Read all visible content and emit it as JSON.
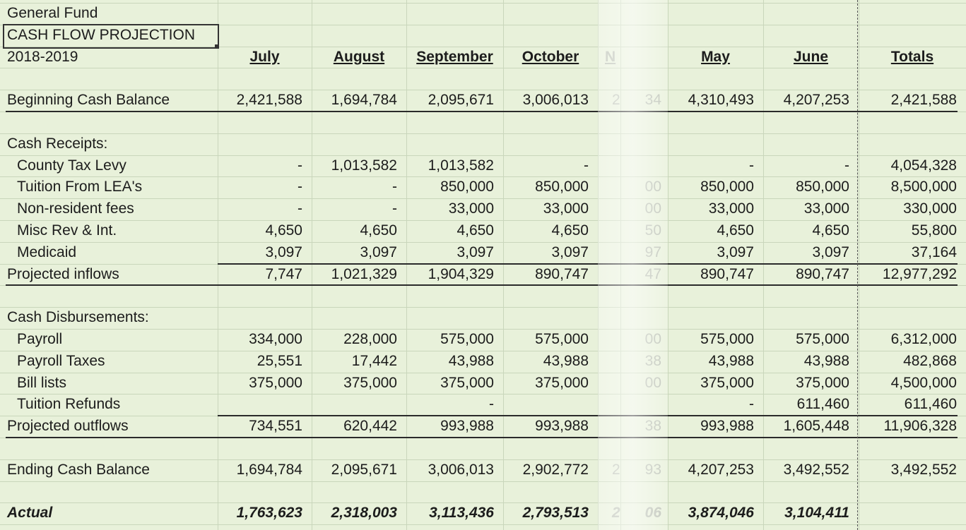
{
  "header": {
    "lines": [
      "General Fund",
      "CASH FLOW PROJECTION",
      "2018-2019"
    ]
  },
  "columns": [
    "July",
    "August",
    "September",
    "October",
    "May",
    "June",
    "Totals"
  ],
  "cropped_column": "N",
  "beginning": {
    "label": "Beginning Cash Balance",
    "values": [
      "2,421,588",
      "1,694,784",
      "2,095,671",
      "3,006,013",
      "4,310,493",
      "4,207,253",
      "2,421,588"
    ],
    "fragment": {
      "left": "2",
      "right": "34"
    }
  },
  "receipts": {
    "heading": "Cash Receipts:",
    "items": [
      {
        "label": "County Tax Levy",
        "values": [
          "-",
          "1,013,582",
          "1,013,582",
          "-",
          "-",
          "-",
          "4,054,328"
        ]
      },
      {
        "label": "Tuition From LEA's",
        "values": [
          "-",
          "-",
          "850,000",
          "850,000",
          "850,000",
          "850,000",
          "8,500,000"
        ],
        "fragment": {
          "right": "00"
        }
      },
      {
        "label": "Non-resident fees",
        "values": [
          "-",
          "-",
          "33,000",
          "33,000",
          "33,000",
          "33,000",
          "330,000"
        ],
        "fragment": {
          "right": "00"
        }
      },
      {
        "label": "Misc Rev & Int.",
        "values": [
          "4,650",
          "4,650",
          "4,650",
          "4,650",
          "4,650",
          "4,650",
          "55,800"
        ],
        "fragment": {
          "right": "50"
        }
      },
      {
        "label": "Medicaid",
        "values": [
          "3,097",
          "3,097",
          "3,097",
          "3,097",
          "3,097",
          "3,097",
          "37,164"
        ],
        "fragment": {
          "right": "97"
        }
      }
    ],
    "total": {
      "label": "Projected inflows",
      "values": [
        "7,747",
        "1,021,329",
        "1,904,329",
        "890,747",
        "890,747",
        "890,747",
        "12,977,292"
      ],
      "fragment": {
        "right": "47"
      }
    }
  },
  "disbursements": {
    "heading": "Cash Disbursements:",
    "items": [
      {
        "label": "Payroll",
        "values": [
          "334,000",
          "228,000",
          "575,000",
          "575,000",
          "575,000",
          "575,000",
          "6,312,000"
        ],
        "fragment": {
          "right": "00"
        }
      },
      {
        "label": "Payroll Taxes",
        "values": [
          "25,551",
          "17,442",
          "43,988",
          "43,988",
          "43,988",
          "43,988",
          "482,868"
        ],
        "fragment": {
          "right": "38"
        }
      },
      {
        "label": "Bill lists",
        "values": [
          "375,000",
          "375,000",
          "375,000",
          "375,000",
          "375,000",
          "375,000",
          "4,500,000"
        ],
        "fragment": {
          "right": "00"
        }
      },
      {
        "label": "Tuition Refunds",
        "values": [
          null,
          null,
          "-",
          null,
          "-",
          "611,460",
          "611,460"
        ]
      }
    ],
    "total": {
      "label": "Projected outflows",
      "values": [
        "734,551",
        "620,442",
        "993,988",
        "993,988",
        "993,988",
        "1,605,448",
        "11,906,328"
      ],
      "fragment": {
        "right": "38"
      }
    }
  },
  "ending": {
    "label": "Ending Cash Balance",
    "values": [
      "1,694,784",
      "2,095,671",
      "3,006,013",
      "2,902,772",
      "4,207,253",
      "3,492,552",
      "3,492,552"
    ],
    "fragment": {
      "left": "2",
      "right": "93"
    }
  },
  "actual": {
    "label": "Actual",
    "values": [
      "1,763,623",
      "2,318,003",
      "3,113,436",
      "2,793,513",
      "3,874,046",
      "3,104,411",
      null
    ],
    "fragment": {
      "left": "2",
      "right": "06"
    }
  }
}
